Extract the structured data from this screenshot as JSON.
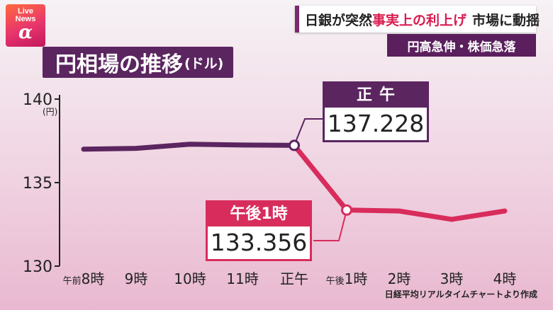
{
  "logo": {
    "line1": "Live",
    "line2": "News",
    "line3": "α"
  },
  "headline": {
    "part1": "日銀が突然",
    "part2": "事実上の利上げ",
    "part3": "市場に動揺"
  },
  "subheadline": "円高急伸・株価急落",
  "title": {
    "main": "円相場の推移",
    "unit": "(ドル)"
  },
  "source": "日経平均リアルタイムチャートより作成",
  "callouts": {
    "noon": {
      "label": "正午",
      "value": "137.228"
    },
    "one_pm": {
      "label": "午後1時",
      "value": "133.356"
    }
  },
  "colors": {
    "morning_line": "#5b2560",
    "afternoon_line": "#d82c5c",
    "title_bg": "#5b2560"
  },
  "chart_data": {
    "type": "line",
    "title": "円相場の推移(ドル)",
    "ylabel": "(円)",
    "ylim": [
      130,
      140
    ],
    "yticks": [
      140,
      135,
      130
    ],
    "categories": [
      "午前8時",
      "9時",
      "10時",
      "11時",
      "正午",
      "午後1時",
      "2時",
      "3時",
      "4時"
    ],
    "category_parts": [
      [
        "午前",
        "8時"
      ],
      [
        "",
        "9時"
      ],
      [
        "",
        "10時"
      ],
      [
        "",
        "11時"
      ],
      [
        "",
        "正午"
      ],
      [
        "午後",
        "1時"
      ],
      [
        "",
        "2時"
      ],
      [
        "",
        "3時"
      ],
      [
        "",
        "4時"
      ]
    ],
    "series": [
      {
        "values": [
          137.0,
          137.05,
          137.3,
          137.25,
          137.228,
          133.356,
          133.3,
          132.8,
          133.3
        ]
      }
    ],
    "highlighted_points": [
      {
        "category": "正午",
        "value": 137.228
      },
      {
        "category": "午後1時",
        "value": 133.356
      }
    ],
    "grid": false,
    "legend": "none"
  }
}
